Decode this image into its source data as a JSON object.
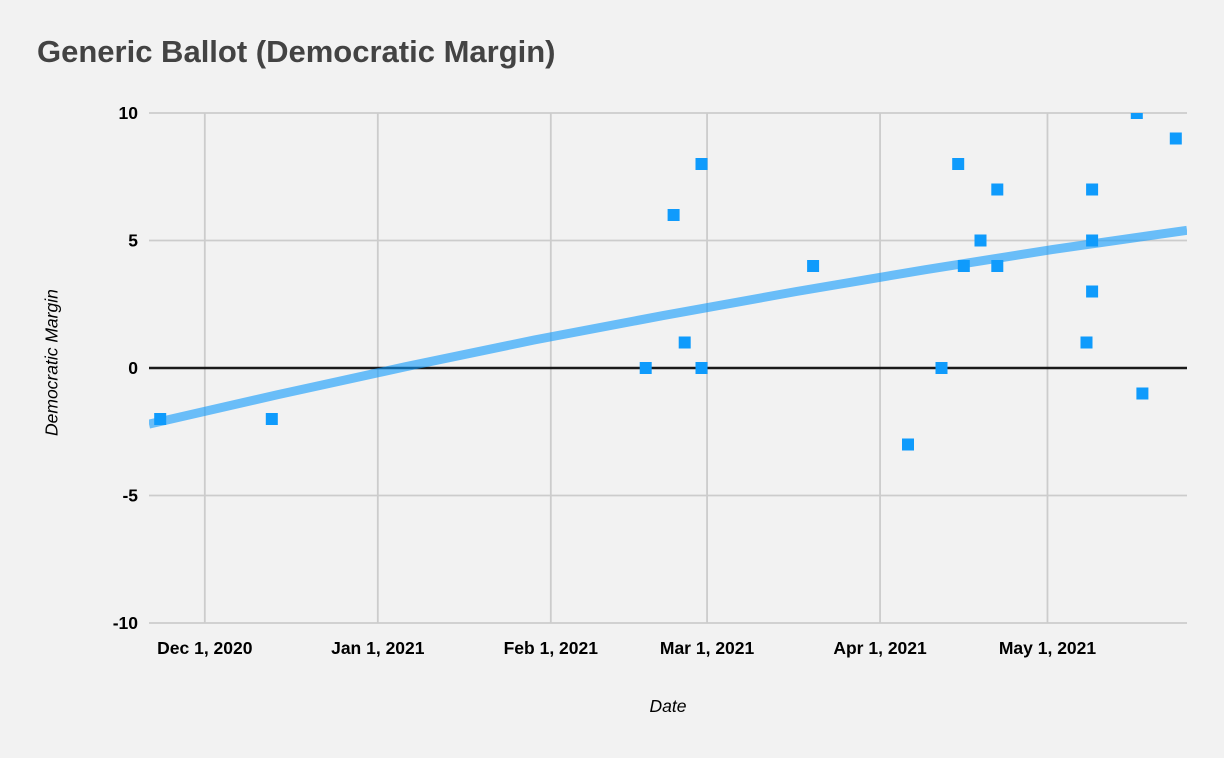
{
  "chart_data": {
    "type": "scatter",
    "title": "Generic Ballot (Democratic Margin)",
    "xlabel": "Date",
    "ylabel": "Democratic Margin",
    "x_domain": [
      "2020-11-21",
      "2021-05-26"
    ],
    "ylim": [
      -10,
      10
    ],
    "grid": true,
    "legend_position": "none",
    "y_ticks": [
      {
        "value": 10,
        "label": "10"
      },
      {
        "value": 5,
        "label": "5"
      },
      {
        "value": 0,
        "label": "0"
      },
      {
        "value": -5,
        "label": "-5"
      },
      {
        "value": -10,
        "label": "-10"
      }
    ],
    "x_ticks": [
      {
        "date": "2020-12-01",
        "label": "Dec 1, 2020"
      },
      {
        "date": "2021-01-01",
        "label": "Jan 1, 2021"
      },
      {
        "date": "2021-02-01",
        "label": "Feb 1, 2021"
      },
      {
        "date": "2021-03-01",
        "label": "Mar 1, 2021"
      },
      {
        "date": "2021-04-01",
        "label": "Apr 1, 2021"
      },
      {
        "date": "2021-05-01",
        "label": "May 1, 2021"
      }
    ],
    "series": [
      {
        "name": "Democratic Margin",
        "marker": "square",
        "color": "#0f9bfc",
        "points": [
          {
            "date": "2020-11-23",
            "value": -2
          },
          {
            "date": "2020-12-13",
            "value": -2
          },
          {
            "date": "2021-02-18",
            "value": 0
          },
          {
            "date": "2021-02-23",
            "value": 6
          },
          {
            "date": "2021-02-25",
            "value": 1
          },
          {
            "date": "2021-02-28",
            "value": 8
          },
          {
            "date": "2021-02-28",
            "value": 0
          },
          {
            "date": "2021-03-20",
            "value": 4
          },
          {
            "date": "2021-04-06",
            "value": -3
          },
          {
            "date": "2021-04-12",
            "value": 0
          },
          {
            "date": "2021-04-15",
            "value": 8
          },
          {
            "date": "2021-04-16",
            "value": 4
          },
          {
            "date": "2021-04-19",
            "value": 5
          },
          {
            "date": "2021-04-22",
            "value": 4
          },
          {
            "date": "2021-04-22",
            "value": 7
          },
          {
            "date": "2021-05-08",
            "value": 1
          },
          {
            "date": "2021-05-09",
            "value": 7
          },
          {
            "date": "2021-05-09",
            "value": 5
          },
          {
            "date": "2021-05-09",
            "value": 3
          },
          {
            "date": "2021-05-17",
            "value": 10
          },
          {
            "date": "2021-05-18",
            "value": -1
          },
          {
            "date": "2021-05-24",
            "value": 9
          }
        ]
      }
    ],
    "trendline": {
      "color": "#0d99fc",
      "opacity": 0.6,
      "stroke_width": 9,
      "points": [
        {
          "date": "2020-11-21",
          "value": -2.2
        },
        {
          "date": "2020-12-14",
          "value": -1.05
        },
        {
          "date": "2021-01-06",
          "value": 0.05
        },
        {
          "date": "2021-01-29",
          "value": 1.1
        },
        {
          "date": "2021-02-21",
          "value": 2.05
        },
        {
          "date": "2021-03-17",
          "value": 3.0
        },
        {
          "date": "2021-04-09",
          "value": 3.85
        },
        {
          "date": "2021-05-02",
          "value": 4.65
        },
        {
          "date": "2021-05-26",
          "value": 5.4
        }
      ]
    },
    "colors": {
      "background": "#f2f2f2",
      "title_text": "#434343",
      "gridline": "#cccccc",
      "zero_line": "#1a1a1a",
      "tick_text": "#000000",
      "point": "#0f9bfc"
    }
  }
}
